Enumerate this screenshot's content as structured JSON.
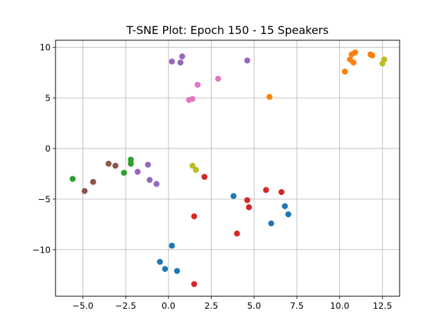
{
  "chart_data": {
    "type": "scatter",
    "title": "T-SNE Plot: Epoch 150 - 15 Speakers",
    "xlabel": "",
    "ylabel": "",
    "xlim": [
      -6.6,
      13.5
    ],
    "ylim": [
      -14.6,
      10.7
    ],
    "grid": true,
    "xticks": [
      -5.0,
      -2.5,
      0.0,
      2.5,
      5.0,
      7.5,
      10.0,
      12.5
    ],
    "xtick_labels": [
      "−5.0",
      "−2.5",
      "0.0",
      "2.5",
      "5.0",
      "7.5",
      "10.0",
      "12.5"
    ],
    "yticks": [
      10,
      5,
      0,
      -5,
      -10
    ],
    "ytick_labels": [
      "10",
      "5",
      "0",
      "−5",
      "−10"
    ],
    "series": [
      {
        "color": "#1f77b4",
        "points": [
          [
            3.8,
            -4.7
          ],
          [
            6.8,
            -5.7
          ],
          [
            7.0,
            -6.5
          ],
          [
            6.0,
            -7.4
          ],
          [
            0.2,
            -9.6
          ],
          [
            -0.5,
            -11.2
          ],
          [
            -0.2,
            -11.9
          ],
          [
            0.5,
            -12.1
          ]
        ]
      },
      {
        "color": "#ff7f0e",
        "points": [
          [
            10.9,
            9.5
          ],
          [
            10.7,
            9.3
          ],
          [
            10.6,
            8.8
          ],
          [
            10.8,
            8.5
          ],
          [
            10.3,
            7.6
          ],
          [
            11.8,
            9.3
          ],
          [
            11.9,
            9.2
          ],
          [
            5.9,
            5.1
          ]
        ]
      },
      {
        "color": "#2ca02c",
        "points": [
          [
            -5.6,
            -3.0
          ],
          [
            -2.2,
            -1.1
          ],
          [
            -2.2,
            -1.5
          ],
          [
            -2.6,
            -2.4
          ]
        ]
      },
      {
        "color": "#d62728",
        "points": [
          [
            2.1,
            -2.8
          ],
          [
            5.7,
            -4.1
          ],
          [
            6.6,
            -4.3
          ],
          [
            4.6,
            -5.1
          ],
          [
            4.7,
            -5.8
          ],
          [
            1.5,
            -6.7
          ],
          [
            4.0,
            -8.4
          ],
          [
            1.5,
            -13.4
          ]
        ]
      },
      {
        "color": "#9467bd",
        "points": [
          [
            0.8,
            9.1
          ],
          [
            0.2,
            8.6
          ],
          [
            0.7,
            8.5
          ],
          [
            4.6,
            8.7
          ],
          [
            -1.2,
            -1.6
          ],
          [
            -1.8,
            -2.3
          ],
          [
            -1.1,
            -3.1
          ],
          [
            -0.7,
            -3.5
          ]
        ]
      },
      {
        "color": "#8c564b",
        "points": [
          [
            -3.5,
            -1.5
          ],
          [
            -3.1,
            -1.7
          ],
          [
            -4.4,
            -3.3
          ],
          [
            -4.9,
            -4.2
          ]
        ]
      },
      {
        "color": "#e377c2",
        "points": [
          [
            1.7,
            6.3
          ],
          [
            2.9,
            6.9
          ],
          [
            1.2,
            4.8
          ],
          [
            1.4,
            4.9
          ]
        ]
      },
      {
        "color": "#bcbd22",
        "points": [
          [
            12.6,
            8.8
          ],
          [
            12.5,
            8.4
          ],
          [
            1.4,
            -1.7
          ],
          [
            1.6,
            -2.1
          ]
        ]
      }
    ]
  }
}
